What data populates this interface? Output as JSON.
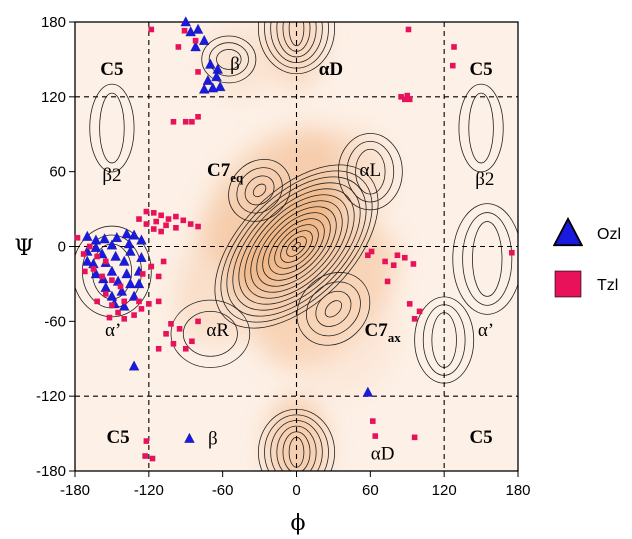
{
  "chart_data": {
    "type": "scatter",
    "background": "contour",
    "title": "",
    "xlabel": "ϕ",
    "ylabel": "Ψ",
    "xlim": [
      -180,
      180
    ],
    "ylim": [
      -180,
      180
    ],
    "xticks": [
      -180,
      -120,
      -60,
      0,
      60,
      120,
      180
    ],
    "yticks": [
      -180,
      -120,
      -60,
      0,
      60,
      120,
      180
    ],
    "dashed_lines_x": [
      -120,
      0,
      120
    ],
    "dashed_lines_y": [
      -120,
      0,
      120
    ],
    "region_labels": [
      {
        "text": "C5",
        "phi": -150,
        "psi": 143,
        "bold": true
      },
      {
        "text": "β",
        "phi": -50,
        "psi": 147,
        "bold": false
      },
      {
        "text": "αD",
        "phi": 28,
        "psi": 143,
        "bold": true
      },
      {
        "text": "C5",
        "phi": 150,
        "psi": 143,
        "bold": true
      },
      {
        "text": "β2",
        "phi": -150,
        "psi": 58,
        "bold": false
      },
      {
        "text": "C7",
        "sub": "eq",
        "phi": -58,
        "psi": 62,
        "bold": true
      },
      {
        "text": "αL",
        "phi": 60,
        "psi": 62,
        "bold": false
      },
      {
        "text": "β2",
        "phi": 153,
        "psi": 55,
        "bold": false
      },
      {
        "text": "α’",
        "phi": -149,
        "psi": -66,
        "bold": false
      },
      {
        "text": "αR",
        "phi": -64,
        "psi": -66,
        "bold": false
      },
      {
        "text": "C7",
        "sub": "ax",
        "phi": 70,
        "psi": -66,
        "bold": true
      },
      {
        "text": "α’",
        "phi": 154,
        "psi": -66,
        "bold": false
      },
      {
        "text": "C5",
        "phi": -145,
        "psi": -152,
        "bold": true
      },
      {
        "text": "β",
        "phi": -68,
        "psi": -153,
        "bold": false
      },
      {
        "text": "αD",
        "phi": 70,
        "psi": -165,
        "bold": false
      },
      {
        "text": "C5",
        "phi": 150,
        "psi": -152,
        "bold": true
      }
    ],
    "legend": {
      "position": "right",
      "entries": [
        "Ozl",
        "Tzl"
      ]
    },
    "series": [
      {
        "name": "Ozl",
        "marker": "triangle",
        "color": "#1a1adf",
        "points": [
          [
            -90,
            180
          ],
          [
            -86,
            172
          ],
          [
            -80,
            174
          ],
          [
            -75,
            165
          ],
          [
            -82,
            160
          ],
          [
            -70,
            146
          ],
          [
            -64,
            142
          ],
          [
            -65,
            136
          ],
          [
            -72,
            133
          ],
          [
            -62,
            128
          ],
          [
            -68,
            127
          ],
          [
            -75,
            126
          ],
          [
            -170,
            8
          ],
          [
            -163,
            5
          ],
          [
            -156,
            6
          ],
          [
            -146,
            7
          ],
          [
            -138,
            10
          ],
          [
            -132,
            9
          ],
          [
            -126,
            5
          ],
          [
            -136,
            2
          ],
          [
            -150,
            1
          ],
          [
            -163,
            -1
          ],
          [
            -170,
            -4
          ],
          [
            -158,
            -6
          ],
          [
            -147,
            -8
          ],
          [
            -135,
            -4
          ],
          [
            -126,
            -9
          ],
          [
            -140,
            -12
          ],
          [
            -155,
            -13
          ],
          [
            -165,
            -14
          ],
          [
            -150,
            -20
          ],
          [
            -138,
            -22
          ],
          [
            -128,
            -20
          ],
          [
            -145,
            -28
          ],
          [
            -135,
            -30
          ],
          [
            -157,
            -26
          ],
          [
            -128,
            -30
          ],
          [
            -142,
            -36
          ],
          [
            -150,
            -40
          ],
          [
            -132,
            -40
          ],
          [
            -140,
            -48
          ],
          [
            -148,
            -46
          ],
          [
            -155,
            -33
          ],
          [
            -163,
            -22
          ],
          [
            -170,
            -12
          ],
          [
            -132,
            -96
          ],
          [
            -87,
            -154
          ],
          [
            58,
            -117
          ]
        ]
      },
      {
        "name": "Tzl",
        "marker": "square",
        "color": "#e8125b",
        "points": [
          [
            -118,
            174
          ],
          [
            -91,
            173
          ],
          [
            -82,
            165
          ],
          [
            -96,
            160
          ],
          [
            -80,
            140
          ],
          [
            -80,
            104
          ],
          [
            -85,
            100
          ],
          [
            -90,
            100
          ],
          [
            -100,
            100
          ],
          [
            88,
            118
          ],
          [
            92,
            118
          ],
          [
            85,
            120
          ],
          [
            90,
            121
          ],
          [
            128,
            160
          ],
          [
            127,
            145
          ],
          [
            91,
            174
          ],
          [
            -122,
            28
          ],
          [
            -116,
            27
          ],
          [
            -110,
            25
          ],
          [
            -104,
            22
          ],
          [
            -98,
            24
          ],
          [
            -92,
            21
          ],
          [
            -86,
            18
          ],
          [
            -80,
            16
          ],
          [
            -114,
            20
          ],
          [
            -106,
            17
          ],
          [
            -98,
            15
          ],
          [
            -122,
            18
          ],
          [
            -116,
            14
          ],
          [
            -128,
            22
          ],
          [
            -110,
            12
          ],
          [
            -178,
            7
          ],
          [
            -168,
            0
          ],
          [
            -173,
            -6
          ],
          [
            -162,
            -8
          ],
          [
            -155,
            -12
          ],
          [
            -165,
            -18
          ],
          [
            -172,
            -20
          ],
          [
            -158,
            -24
          ],
          [
            -150,
            -27
          ],
          [
            -143,
            -32
          ],
          [
            -155,
            -38
          ],
          [
            -162,
            -44
          ],
          [
            -150,
            -47
          ],
          [
            -140,
            -44
          ],
          [
            -128,
            -44
          ],
          [
            -145,
            -53
          ],
          [
            -152,
            -57
          ],
          [
            -140,
            -58
          ],
          [
            -132,
            -55
          ],
          [
            -126,
            -50
          ],
          [
            -120,
            -46
          ],
          [
            -112,
            -44
          ],
          [
            -125,
            -22
          ],
          [
            -118,
            -16
          ],
          [
            -108,
            -12
          ],
          [
            -112,
            -24
          ],
          [
            -102,
            -62
          ],
          [
            -95,
            -66
          ],
          [
            -100,
            -78
          ],
          [
            -90,
            -82
          ],
          [
            -85,
            -76
          ],
          [
            -112,
            -82
          ],
          [
            -106,
            -70
          ],
          [
            -80,
            -60
          ],
          [
            58,
            -7
          ],
          [
            61,
            -4
          ],
          [
            72,
            -12
          ],
          [
            79,
            -15
          ],
          [
            82,
            -7
          ],
          [
            88,
            -9
          ],
          [
            95,
            -14
          ],
          [
            74,
            -28
          ],
          [
            96,
            -58
          ],
          [
            92,
            -46
          ],
          [
            100,
            -52
          ],
          [
            175,
            -5
          ],
          [
            -122,
            -156
          ],
          [
            -123,
            -168
          ],
          [
            -117,
            -170
          ],
          [
            62,
            -140
          ],
          [
            64,
            -152
          ],
          [
            96,
            -153
          ]
        ]
      }
    ]
  }
}
